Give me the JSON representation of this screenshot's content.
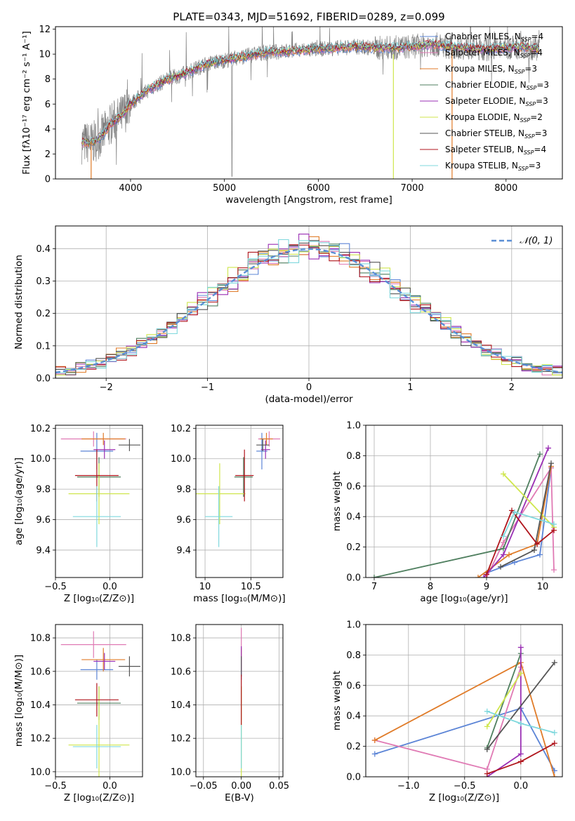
{
  "title": "PLATE=0343, MJD=51692, FIBERID=0289, z=0.099",
  "colors": {
    "Chabrier MILES": "#5b84d6",
    "Salpeter MILES": "#e07ab4",
    "Kroupa MILES": "#e07b28",
    "Chabrier ELODIE": "#4f7f5f",
    "Salpeter ELODIE": "#9a2fb4",
    "Kroupa ELODIE": "#cfe64d",
    "Chabrier STELIB": "#555555",
    "Salpeter STELIB": "#b0151c",
    "Kroupa STELIB": "#7fd8dd",
    "data": "#808080"
  },
  "models": [
    {
      "key": "Chabrier MILES",
      "label": "Chabrier MILES, N",
      "n": "=4"
    },
    {
      "key": "Salpeter MILES",
      "label": "Salpeter MILES, N",
      "n": "=4"
    },
    {
      "key": "Kroupa MILES",
      "label": "Kroupa MILES, N",
      "n": "=3"
    },
    {
      "key": "Chabrier ELODIE",
      "label": "Chabrier ELODIE, N",
      "n": "=3"
    },
    {
      "key": "Salpeter ELODIE",
      "label": "Salpeter ELODIE, N",
      "n": "=3"
    },
    {
      "key": "Kroupa ELODIE",
      "label": "Kroupa ELODIE, N",
      "n": "=2"
    },
    {
      "key": "Chabrier STELIB",
      "label": "Chabrier STELIB, N",
      "n": "=3"
    },
    {
      "key": "Salpeter STELIB",
      "label": "Salpeter STELIB, N",
      "n": "=4"
    },
    {
      "key": "Kroupa STELIB",
      "label": "Kroupa STELIB, N",
      "n": "=3"
    }
  ],
  "chart_data": [
    {
      "id": "spectrum",
      "type": "line",
      "xlabel": "wavelength [Angstrom, rest frame]",
      "ylabel": "Flux [fλ10⁻¹⁷ erg cm⁻² s⁻¹ A⁻¹]",
      "xlim": [
        3200,
        8600
      ],
      "ylim": [
        0,
        12.2
      ],
      "xticks": [
        4000,
        5000,
        6000,
        7000,
        8000
      ],
      "yticks": [
        0,
        2,
        4,
        6,
        8,
        10,
        12
      ],
      "continuum": {
        "x": [
          3480,
          3600,
          3700,
          3800,
          3900,
          4000,
          4200,
          4400,
          4600,
          4800,
          5000,
          5200,
          5400,
          5600,
          5800,
          6000,
          6200,
          6400,
          6600,
          6800,
          7000,
          7200,
          7400,
          7600,
          7800,
          8000,
          8200,
          8360
        ],
        "y": [
          2.9,
          2.9,
          3.5,
          4.5,
          5.0,
          6.0,
          7.2,
          8.0,
          8.5,
          9.2,
          9.5,
          9.8,
          10.1,
          10.2,
          10.3,
          10.4,
          10.5,
          10.6,
          10.5,
          10.5,
          10.6,
          10.8,
          10.6,
          10.5,
          10.4,
          10.5,
          10.6,
          10.4
        ]
      },
      "grid": false,
      "legend": "upper right"
    },
    {
      "id": "residuals",
      "type": "histogram",
      "xlabel": "(data-model)/error",
      "ylabel": "Normed distribution",
      "xlim": [
        -2.5,
        2.5
      ],
      "ylim": [
        0,
        0.47
      ],
      "xticks": [
        -2,
        -1,
        0,
        1,
        2
      ],
      "xtick_labels": [
        "−2",
        "−1",
        "0",
        "1",
        "2"
      ],
      "yticks": [
        0.0,
        0.1,
        0.2,
        0.3,
        0.4
      ],
      "reference_label": "𝒩(0, 1)",
      "reference": "normal(0,1)",
      "grid": true,
      "legend": "upper right"
    },
    {
      "id": "age-vs-Z",
      "type": "errorbar",
      "xlabel": "Z [log₁₀(Z/Z⊙)]",
      "ylabel": "age  [log₁₀(age/yr)]",
      "xlim": [
        -0.5,
        0.3
      ],
      "ylim": [
        9.22,
        10.22
      ],
      "xticks": [
        -0.5,
        0.0
      ],
      "xtick_labels": [
        "−0.5",
        "0.0"
      ],
      "yticks": [
        9.4,
        9.6,
        9.8,
        10.0,
        10.2
      ],
      "points": [
        {
          "key": "Chabrier MILES",
          "x": -0.12,
          "y": 10.05,
          "xerr": 0.15,
          "yerr": 0.12
        },
        {
          "key": "Salpeter MILES",
          "x": -0.15,
          "y": 10.13,
          "xerr": 0.3,
          "yerr": 0.05
        },
        {
          "key": "Kroupa MILES",
          "x": -0.06,
          "y": 10.13,
          "xerr": 0.2,
          "yerr": 0.04
        },
        {
          "key": "Chabrier ELODIE",
          "x": -0.1,
          "y": 9.88,
          "xerr": 0.2,
          "yerr": 0.13
        },
        {
          "key": "Salpeter ELODIE",
          "x": -0.05,
          "y": 10.06,
          "xerr": 0.1,
          "yerr": 0.06
        },
        {
          "key": "Kroupa ELODIE",
          "x": -0.1,
          "y": 9.77,
          "xerr": 0.28,
          "yerr": 0.2
        },
        {
          "key": "Chabrier STELIB",
          "x": 0.18,
          "y": 10.09,
          "xerr": 0.1,
          "yerr": 0.04
        },
        {
          "key": "Salpeter STELIB",
          "x": -0.12,
          "y": 9.89,
          "xerr": 0.2,
          "yerr": 0.17
        },
        {
          "key": "Kroupa STELIB",
          "x": -0.12,
          "y": 9.62,
          "xerr": 0.22,
          "yerr": 0.2
        }
      ]
    },
    {
      "id": "age-vs-mass",
      "type": "errorbar",
      "xlabel": "mass [log₁₀(M/M⊙)]",
      "ylabel": "",
      "xlim": [
        9.9,
        10.85
      ],
      "ylim": [
        9.22,
        10.22
      ],
      "xticks": [
        10.0,
        10.5
      ],
      "yticks": [
        9.4,
        9.6,
        9.8,
        10.0,
        10.2
      ],
      "points": [
        {
          "key": "Chabrier MILES",
          "x": 10.62,
          "y": 10.05,
          "xerr": 0.06,
          "yerr": 0.12
        },
        {
          "key": "Salpeter MILES",
          "x": 10.7,
          "y": 10.13,
          "xerr": 0.12,
          "yerr": 0.05
        },
        {
          "key": "Kroupa MILES",
          "x": 10.67,
          "y": 10.13,
          "xerr": 0.07,
          "yerr": 0.04
        },
        {
          "key": "Chabrier ELODIE",
          "x": 10.42,
          "y": 9.88,
          "xerr": 0.1,
          "yerr": 0.13
        },
        {
          "key": "Salpeter ELODIE",
          "x": 10.66,
          "y": 10.06,
          "xerr": 0.05,
          "yerr": 0.06
        },
        {
          "key": "Kroupa ELODIE",
          "x": 10.16,
          "y": 9.77,
          "xerr": 0.28,
          "yerr": 0.2
        },
        {
          "key": "Chabrier STELIB",
          "x": 10.63,
          "y": 10.09,
          "xerr": 0.07,
          "yerr": 0.04
        },
        {
          "key": "Salpeter STELIB",
          "x": 10.43,
          "y": 9.89,
          "xerr": 0.1,
          "yerr": 0.17
        },
        {
          "key": "Kroupa STELIB",
          "x": 10.15,
          "y": 9.62,
          "xerr": 0.15,
          "yerr": 0.2
        }
      ]
    },
    {
      "id": "weight-vs-age",
      "type": "line",
      "xlabel": "age  [log₁₀(age/yr)]",
      "ylabel": "mass weight",
      "xlim": [
        6.85,
        10.35
      ],
      "ylim": [
        0,
        1
      ],
      "xticks": [
        7,
        8,
        9,
        10
      ],
      "yticks": [
        0.0,
        0.2,
        0.4,
        0.6,
        0.8,
        1.0
      ],
      "series": [
        {
          "key": "Chabrier MILES",
          "x": [
            9.0,
            9.5,
            9.95,
            10.15
          ],
          "y": [
            0.03,
            0.1,
            0.15,
            0.72
          ]
        },
        {
          "key": "Salpeter MILES",
          "x": [
            9.0,
            9.3,
            10.15,
            10.2
          ],
          "y": [
            0.0,
            0.23,
            0.72,
            0.05
          ]
        },
        {
          "key": "Kroupa MILES",
          "x": [
            8.85,
            9.4,
            9.9,
            10.15
          ],
          "y": [
            0.0,
            0.15,
            0.22,
            0.73
          ]
        },
        {
          "key": "Chabrier ELODIE",
          "x": [
            7.0,
            9.3,
            9.95
          ],
          "y": [
            0.0,
            0.19,
            0.81
          ]
        },
        {
          "key": "Salpeter ELODIE",
          "x": [
            8.95,
            9.3,
            10.1
          ],
          "y": [
            0.0,
            0.15,
            0.85
          ]
        },
        {
          "key": "Kroupa ELODIE",
          "x": [
            9.3,
            10.2
          ],
          "y": [
            0.68,
            0.33
          ]
        },
        {
          "key": "Chabrier STELIB",
          "x": [
            9.25,
            9.85,
            10.15
          ],
          "y": [
            0.07,
            0.18,
            0.75
          ]
        },
        {
          "key": "Salpeter STELIB",
          "x": [
            9.0,
            9.45,
            9.9,
            10.2
          ],
          "y": [
            0.02,
            0.44,
            0.22,
            0.31
          ]
        },
        {
          "key": "Kroupa STELIB",
          "x": [
            9.3,
            9.5,
            10.2
          ],
          "y": [
            0.27,
            0.43,
            0.35
          ]
        }
      ]
    },
    {
      "id": "mass-vs-Z",
      "type": "errorbar",
      "xlabel": "Z [log₁₀(Z/Z⊙)]",
      "ylabel": "mass [log₁₀(M/M⊙)]",
      "xlim": [
        -0.5,
        0.3
      ],
      "ylim": [
        9.97,
        10.88
      ],
      "xticks": [
        -0.5,
        0.0
      ],
      "xtick_labels": [
        "−0.5",
        "0.0"
      ],
      "yticks": [
        10.0,
        10.2,
        10.4,
        10.6,
        10.8
      ],
      "points": [
        {
          "key": "Chabrier MILES",
          "x": -0.12,
          "y": 10.61,
          "xerr": 0.15,
          "yerr": 0.06
        },
        {
          "key": "Salpeter MILES",
          "x": -0.15,
          "y": 10.76,
          "xerr": 0.3,
          "yerr": 0.08
        },
        {
          "key": "Kroupa MILES",
          "x": -0.06,
          "y": 10.67,
          "xerr": 0.2,
          "yerr": 0.07
        },
        {
          "key": "Chabrier ELODIE",
          "x": -0.1,
          "y": 10.41,
          "xerr": 0.2,
          "yerr": 0.1
        },
        {
          "key": "Salpeter ELODIE",
          "x": -0.05,
          "y": 10.66,
          "xerr": 0.1,
          "yerr": 0.05
        },
        {
          "key": "Kroupa ELODIE",
          "x": -0.1,
          "y": 10.16,
          "xerr": 0.28,
          "yerr": 0.35
        },
        {
          "key": "Chabrier STELIB",
          "x": 0.18,
          "y": 10.63,
          "xerr": 0.1,
          "yerr": 0.06
        },
        {
          "key": "Salpeter STELIB",
          "x": -0.12,
          "y": 10.43,
          "xerr": 0.2,
          "yerr": 0.1
        },
        {
          "key": "Kroupa STELIB",
          "x": -0.12,
          "y": 10.15,
          "xerr": 0.22,
          "yerr": 0.13
        }
      ]
    },
    {
      "id": "mass-vs-EBV",
      "type": "errorbar",
      "xlabel": "E(B-V)",
      "ylabel": "",
      "xlim": [
        -0.06,
        0.055
      ],
      "ylim": [
        9.97,
        10.88
      ],
      "xticks": [
        -0.05,
        0.0,
        0.05
      ],
      "xtick_labels": [
        "−0.05",
        "0.00",
        "0.05"
      ],
      "yticks": [
        10.0,
        10.2,
        10.4,
        10.6,
        10.8
      ],
      "points": [
        {
          "key": "Chabrier MILES",
          "x": 0.0,
          "y": 10.61,
          "xerr": 0,
          "yerr": 0.06
        },
        {
          "key": "Salpeter MILES",
          "x": 0.0,
          "y": 10.76,
          "xerr": 0,
          "yerr": 0.1
        },
        {
          "key": "Kroupa MILES",
          "x": 0.0,
          "y": 10.67,
          "xerr": 0,
          "yerr": 0.07
        },
        {
          "key": "Chabrier ELODIE",
          "x": 0.0,
          "y": 10.41,
          "xerr": 0,
          "yerr": 0.1
        },
        {
          "key": "Salpeter ELODIE",
          "x": 0.0,
          "y": 10.66,
          "xerr": 0,
          "yerr": 0.09
        },
        {
          "key": "Kroupa ELODIE",
          "x": 0.0,
          "y": 10.16,
          "xerr": 0,
          "yerr": 0.35
        },
        {
          "key": "Chabrier STELIB",
          "x": 0.0,
          "y": 10.63,
          "xerr": 0,
          "yerr": 0.06
        },
        {
          "key": "Salpeter STELIB",
          "x": 0.0,
          "y": 10.43,
          "xerr": 0,
          "yerr": 0.15
        },
        {
          "key": "Kroupa STELIB",
          "x": 0.0,
          "y": 10.15,
          "xerr": 0,
          "yerr": 0.13
        }
      ]
    },
    {
      "id": "weight-vs-Z",
      "type": "line",
      "xlabel": "Z [log₁₀(Z/Z⊙)]",
      "ylabel": "mass weight",
      "xlim": [
        -1.38,
        0.37
      ],
      "ylim": [
        0,
        1
      ],
      "xticks": [
        -1.0,
        -0.5,
        0.0
      ],
      "xtick_labels": [
        "−1.0",
        "−0.5",
        "0.0"
      ],
      "yticks": [
        0.0,
        0.2,
        0.4,
        0.6,
        0.8,
        1.0
      ],
      "series": [
        {
          "key": "Chabrier MILES",
          "x": [
            -1.3,
            0.0,
            0.3
          ],
          "y": [
            0.15,
            0.45,
            0.04
          ]
        },
        {
          "key": "Salpeter MILES",
          "x": [
            -1.3,
            -0.3,
            0.0
          ],
          "y": [
            0.24,
            0.05,
            0.72
          ]
        },
        {
          "key": "Kroupa MILES",
          "x": [
            -1.3,
            0.0,
            0.3
          ],
          "y": [
            0.24,
            0.75,
            0.0
          ]
        },
        {
          "key": "Chabrier ELODIE",
          "x": [
            -0.3,
            0.0
          ],
          "y": [
            0.19,
            0.81
          ]
        },
        {
          "key": "Salpeter ELODIE",
          "x": [
            -0.3,
            0.0,
            0.0
          ],
          "y": [
            0.0,
            0.15,
            0.85
          ]
        },
        {
          "key": "Kroupa ELODIE",
          "x": [
            -0.3,
            0.0
          ],
          "y": [
            0.33,
            0.68
          ]
        },
        {
          "key": "Chabrier STELIB",
          "x": [
            -0.3,
            0.3
          ],
          "y": [
            0.18,
            0.75
          ]
        },
        {
          "key": "Salpeter STELIB",
          "x": [
            -0.3,
            0.0,
            0.3
          ],
          "y": [
            0.02,
            0.1,
            0.22
          ]
        },
        {
          "key": "Kroupa STELIB",
          "x": [
            -0.3,
            0.0,
            0.3
          ],
          "y": [
            0.43,
            0.35,
            0.29
          ]
        }
      ]
    }
  ]
}
